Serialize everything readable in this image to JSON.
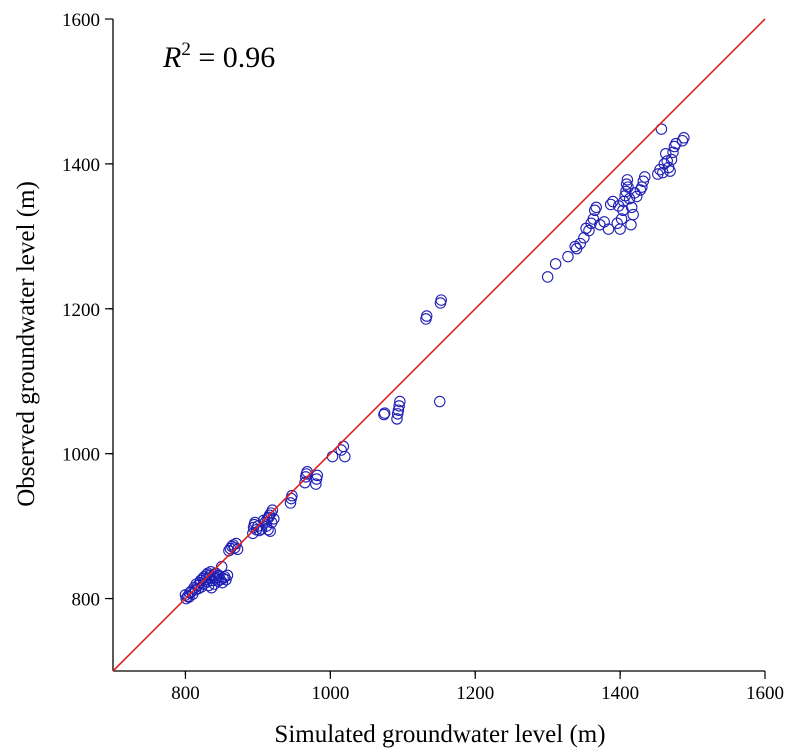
{
  "colors": {
    "points": "#1f1fb4",
    "reference_line": "#e02020",
    "axes": "#000000"
  },
  "annotation": {
    "r2_symbol": "R",
    "r2_exponent": "2",
    "r2_value": " = 0.96"
  },
  "chart_data": {
    "type": "scatter",
    "title": "",
    "xlabel": "Simulated groundwater level (m)",
    "ylabel": "Observed groundwater level (m)",
    "xlim": [
      700,
      1600
    ],
    "ylim": [
      700,
      1600
    ],
    "xticks": [
      800,
      1000,
      1200,
      1400,
      1600
    ],
    "yticks": [
      800,
      1000,
      1200,
      1400,
      1600
    ],
    "reference_line": {
      "x": [
        700,
        1600
      ],
      "y": [
        700,
        1600
      ]
    },
    "grid": false,
    "legend": "none",
    "points": [
      [
        800,
        805
      ],
      [
        801,
        800
      ],
      [
        803,
        803
      ],
      [
        805,
        802
      ],
      [
        806,
        808
      ],
      [
        808,
        810
      ],
      [
        810,
        806
      ],
      [
        812,
        815
      ],
      [
        814,
        812
      ],
      [
        815,
        820
      ],
      [
        817,
        818
      ],
      [
        818,
        814
      ],
      [
        820,
        822
      ],
      [
        821,
        825
      ],
      [
        822,
        816
      ],
      [
        824,
        828
      ],
      [
        825,
        820
      ],
      [
        826,
        830
      ],
      [
        828,
        826
      ],
      [
        829,
        833
      ],
      [
        830,
        823
      ],
      [
        831,
        835
      ],
      [
        832,
        818
      ],
      [
        833,
        828
      ],
      [
        834,
        832
      ],
      [
        835,
        837
      ],
      [
        836,
        815
      ],
      [
        837,
        825
      ],
      [
        838,
        830
      ],
      [
        839,
        833
      ],
      [
        840,
        820
      ],
      [
        841,
        827
      ],
      [
        842,
        835
      ],
      [
        843,
        829
      ],
      [
        845,
        824
      ],
      [
        846,
        832
      ],
      [
        848,
        826
      ],
      [
        850,
        844
      ],
      [
        851,
        822
      ],
      [
        852,
        828
      ],
      [
        854,
        830
      ],
      [
        856,
        826
      ],
      [
        858,
        832
      ],
      [
        860,
        866
      ],
      [
        862,
        869
      ],
      [
        864,
        872
      ],
      [
        866,
        874
      ],
      [
        868,
        870
      ],
      [
        870,
        876
      ],
      [
        872,
        868
      ],
      [
        893,
        890
      ],
      [
        894,
        898
      ],
      [
        895,
        902
      ],
      [
        896,
        905
      ],
      [
        898,
        895
      ],
      [
        900,
        900
      ],
      [
        902,
        894
      ],
      [
        905,
        896
      ],
      [
        908,
        908
      ],
      [
        910,
        905
      ],
      [
        912,
        900
      ],
      [
        913,
        910
      ],
      [
        914,
        895
      ],
      [
        915,
        912
      ],
      [
        916,
        915
      ],
      [
        917,
        893
      ],
      [
        918,
        918
      ],
      [
        919,
        905
      ],
      [
        920,
        922
      ],
      [
        922,
        910
      ],
      [
        945,
        932
      ],
      [
        946,
        938
      ],
      [
        947,
        942
      ],
      [
        965,
        960
      ],
      [
        966,
        968
      ],
      [
        967,
        972
      ],
      [
        968,
        975
      ],
      [
        980,
        958
      ],
      [
        981,
        965
      ],
      [
        982,
        970
      ],
      [
        1003,
        996
      ],
      [
        1015,
        1005
      ],
      [
        1018,
        1010
      ],
      [
        1020,
        996
      ],
      [
        1074,
        1054
      ],
      [
        1075,
        1056
      ],
      [
        1092,
        1048
      ],
      [
        1093,
        1055
      ],
      [
        1094,
        1060
      ],
      [
        1095,
        1066
      ],
      [
        1096,
        1072
      ],
      [
        1132,
        1186
      ],
      [
        1133,
        1190
      ],
      [
        1151,
        1072
      ],
      [
        1152,
        1208
      ],
      [
        1153,
        1212
      ],
      [
        1300,
        1244
      ],
      [
        1311,
        1262
      ],
      [
        1328,
        1272
      ],
      [
        1338,
        1286
      ],
      [
        1340,
        1283
      ],
      [
        1345,
        1290
      ],
      [
        1350,
        1298
      ],
      [
        1353,
        1311
      ],
      [
        1357,
        1308
      ],
      [
        1360,
        1318
      ],
      [
        1363,
        1324
      ],
      [
        1365,
        1336
      ],
      [
        1367,
        1340
      ],
      [
        1372,
        1316
      ],
      [
        1378,
        1320
      ],
      [
        1384,
        1310
      ],
      [
        1387,
        1344
      ],
      [
        1390,
        1348
      ],
      [
        1396,
        1318
      ],
      [
        1398,
        1342
      ],
      [
        1400,
        1310
      ],
      [
        1402,
        1324
      ],
      [
        1404,
        1336
      ],
      [
        1405,
        1348
      ],
      [
        1407,
        1356
      ],
      [
        1408,
        1362
      ],
      [
        1409,
        1372
      ],
      [
        1410,
        1378
      ],
      [
        1411,
        1368
      ],
      [
        1413,
        1352
      ],
      [
        1415,
        1316
      ],
      [
        1416,
        1340
      ],
      [
        1418,
        1330
      ],
      [
        1420,
        1360
      ],
      [
        1423,
        1355
      ],
      [
        1428,
        1364
      ],
      [
        1430,
        1368
      ],
      [
        1432,
        1376
      ],
      [
        1434,
        1382
      ],
      [
        1452,
        1386
      ],
      [
        1455,
        1392
      ],
      [
        1457,
        1448
      ],
      [
        1459,
        1388
      ],
      [
        1461,
        1400
      ],
      [
        1463,
        1414
      ],
      [
        1465,
        1404
      ],
      [
        1467,
        1395
      ],
      [
        1469,
        1390
      ],
      [
        1471,
        1406
      ],
      [
        1473,
        1416
      ],
      [
        1475,
        1424
      ],
      [
        1477,
        1428
      ],
      [
        1486,
        1432
      ],
      [
        1488,
        1436
      ]
    ]
  }
}
